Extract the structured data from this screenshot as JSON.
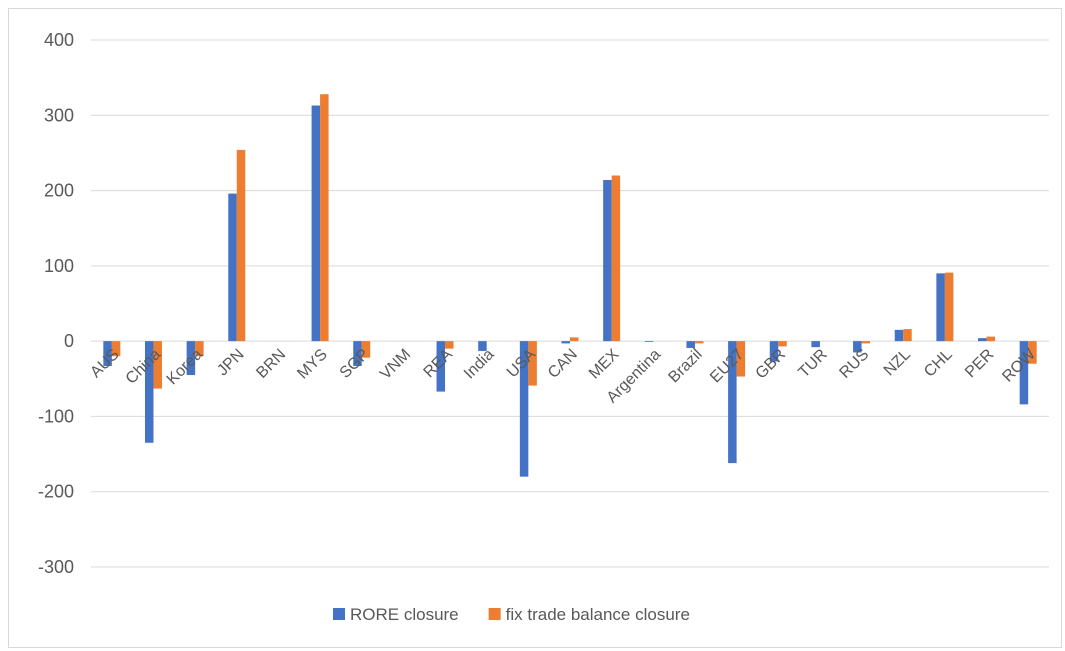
{
  "chart_data": {
    "type": "bar",
    "categories": [
      "AUS",
      "China",
      "Korea",
      "JPN",
      "BRN",
      "MYS",
      "SGP",
      "VNM",
      "REA",
      "India",
      "USA",
      "CAN",
      "MEX",
      "Argentina",
      "Brazil",
      "EU27",
      "GBR",
      "TUR",
      "RUS",
      "NZL",
      "CHL",
      "PER",
      "ROW"
    ],
    "series": [
      {
        "name": "RORE closure",
        "color": "#4472C4",
        "values": [
          -33,
          -135,
          -45,
          196,
          0,
          313,
          -33,
          0,
          -67,
          -13,
          -180,
          -3,
          214,
          -1,
          -9,
          -162,
          -27,
          -8,
          -15,
          15,
          90,
          4,
          -84
        ]
      },
      {
        "name": "fix trade balance closure",
        "color": "#ED7D31",
        "values": [
          -20,
          -63,
          -20,
          254,
          0,
          328,
          -22,
          0,
          -10,
          0,
          -59,
          5,
          220,
          0,
          -3,
          -47,
          -7,
          0,
          -3,
          16,
          91,
          6,
          -30
        ]
      }
    ],
    "ylim": [
      -300,
      400
    ],
    "yticks": [
      -300,
      -200,
      -100,
      0,
      100,
      200,
      300,
      400
    ],
    "grid": true,
    "legend_position": "bottom"
  }
}
